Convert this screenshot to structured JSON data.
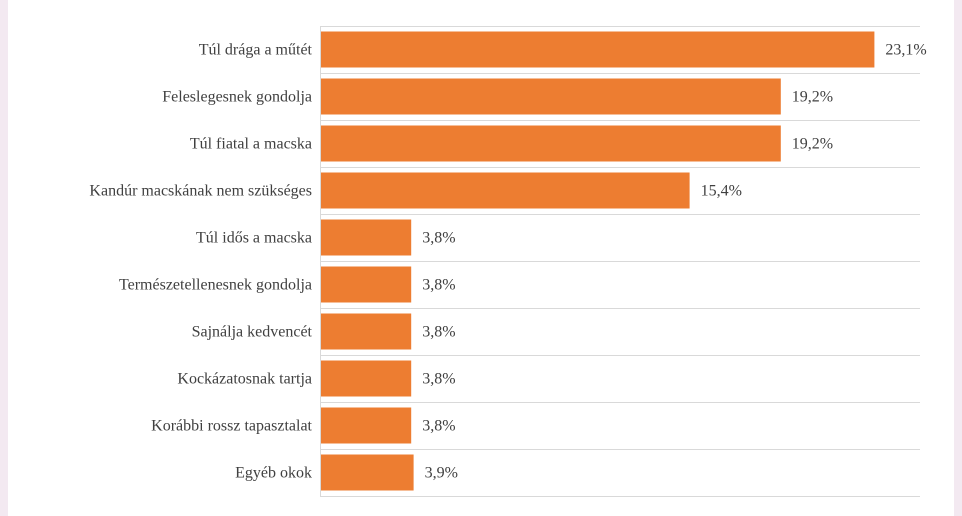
{
  "chart_data": {
    "type": "bar",
    "orientation": "horizontal",
    "categories": [
      "Túl drága a műtét",
      "Feleslegesnek gondolja",
      "Túl fiatal a macska",
      "Kandúr macskának nem szükséges",
      "Túl idős a macska",
      "Természetellenesnek gondolja",
      "Sajnálja kedvencét",
      "Kockázatosnak tartja",
      "Korábbi rossz tapasztalat",
      "Egyéb okok"
    ],
    "values": [
      23.1,
      19.2,
      19.2,
      15.4,
      3.8,
      3.8,
      3.8,
      3.8,
      3.8,
      3.9
    ],
    "value_labels": [
      "23,1%",
      "19,2%",
      "19,2%",
      "15,4%",
      "3,8%",
      "3,8%",
      "3,8%",
      "3,8%",
      "3,8%",
      "3,9%"
    ],
    "xlim": [
      0,
      25
    ],
    "grid": true,
    "bar_color": "#ed7d31",
    "grid_color": "#d9d9d9",
    "text_color": "#404040"
  }
}
